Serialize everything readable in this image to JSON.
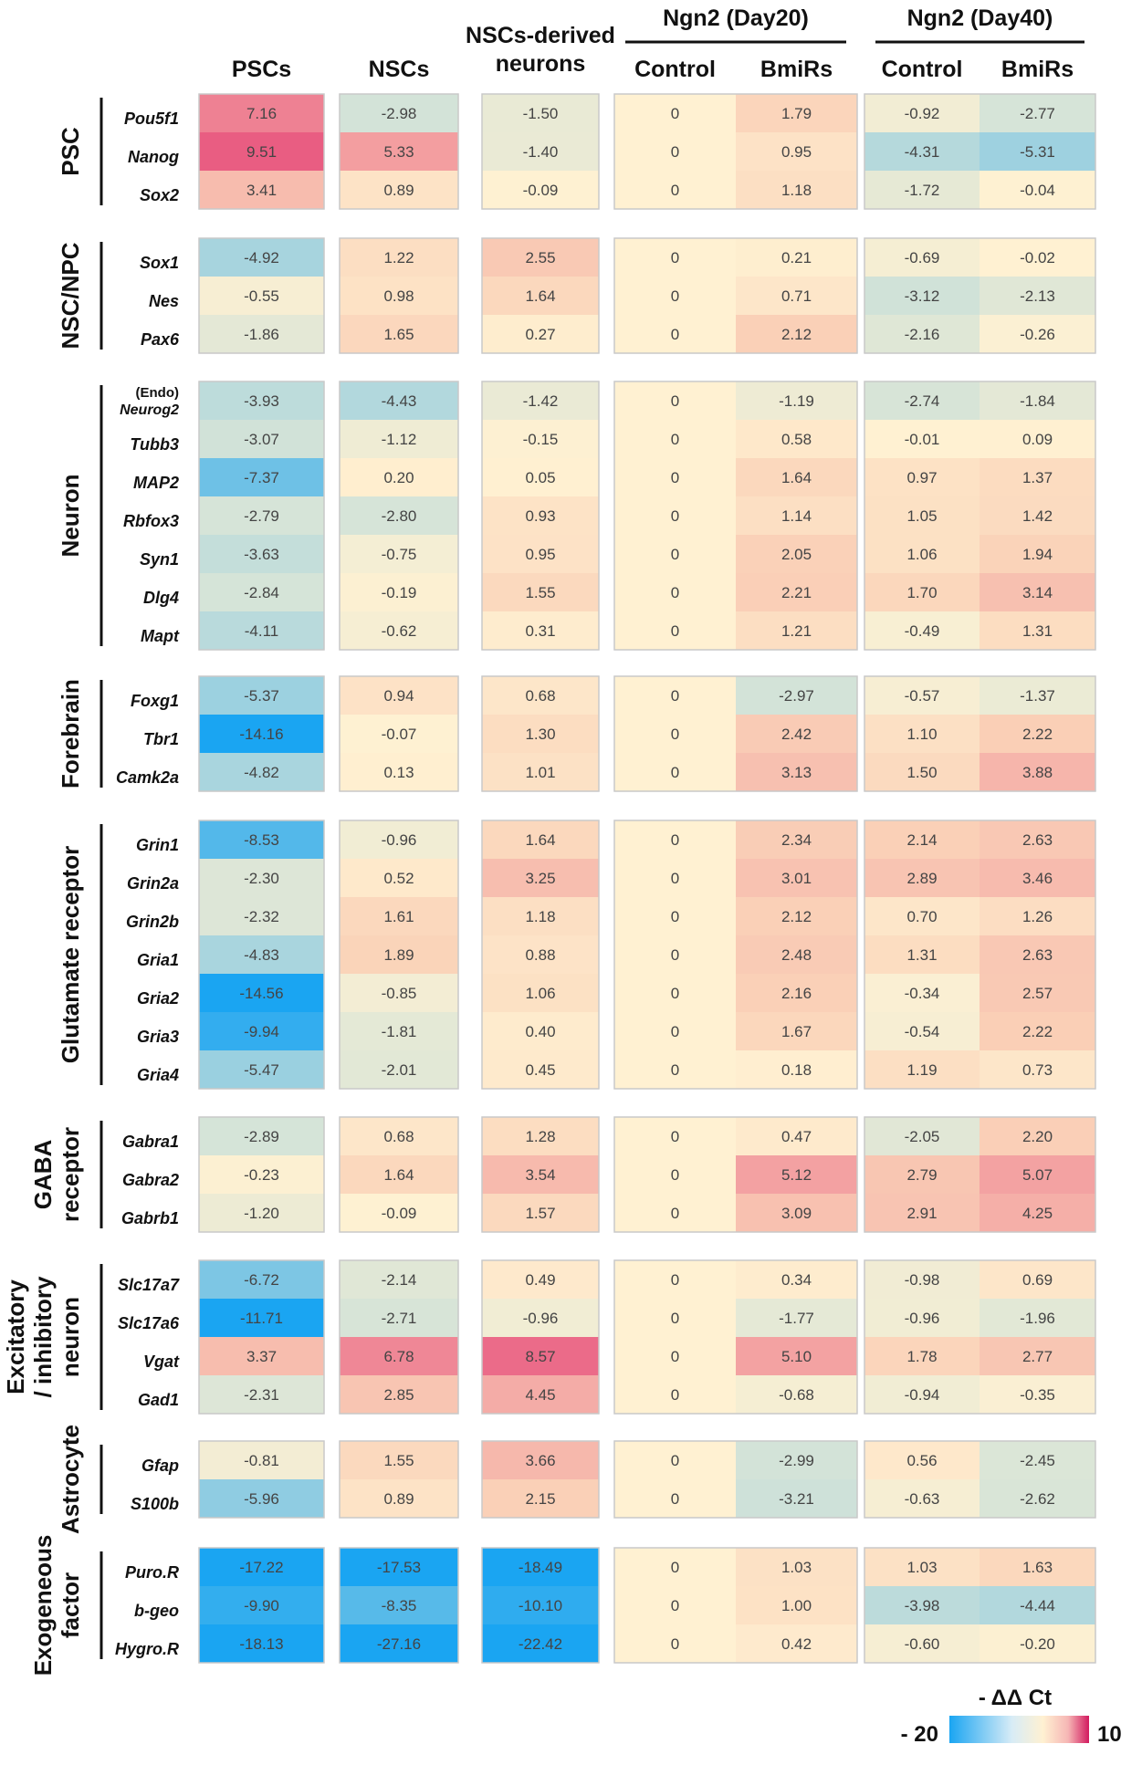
{
  "chart_data": {
    "type": "heatmap",
    "group_headers": [
      {
        "label": "Ngn2 (Day20)"
      },
      {
        "label": "Ngn2 (Day40)"
      }
    ],
    "columns": [
      {
        "label": "PSCs"
      },
      {
        "label": "NSCs"
      },
      {
        "label": "NSCs-derived",
        "label2": "neurons"
      },
      {
        "label": "Control"
      },
      {
        "label": "BmiRs"
      },
      {
        "label": "Control"
      },
      {
        "label": "BmiRs"
      }
    ],
    "groups": [
      {
        "label": [
          "PSC"
        ],
        "rows": [
          {
            "gene": "Pou5f1",
            "values": [
              7.16,
              -2.98,
              -1.5,
              0,
              1.79,
              -0.92,
              -2.77
            ]
          },
          {
            "gene": "Nanog",
            "values": [
              9.51,
              5.33,
              -1.4,
              0,
              0.95,
              -4.31,
              -5.31
            ]
          },
          {
            "gene": "Sox2",
            "values": [
              3.41,
              0.89,
              -0.09,
              0,
              1.18,
              -1.72,
              -0.04
            ]
          }
        ]
      },
      {
        "label": [
          "NSC/NPC"
        ],
        "rows": [
          {
            "gene": "Sox1",
            "values": [
              -4.92,
              1.22,
              2.55,
              0,
              0.21,
              -0.69,
              -0.02
            ]
          },
          {
            "gene": "Nes",
            "values": [
              -0.55,
              0.98,
              1.64,
              0,
              0.71,
              -3.12,
              -2.13
            ]
          },
          {
            "gene": "Pax6",
            "values": [
              -1.86,
              1.65,
              0.27,
              0,
              2.12,
              -2.16,
              -0.26
            ]
          }
        ]
      },
      {
        "label": [
          "Neuron"
        ],
        "rows": [
          {
            "gene_prefix": "(Endo)",
            "gene": "Neurog2",
            "values": [
              -3.93,
              -4.43,
              -1.42,
              0,
              -1.19,
              -2.74,
              -1.84
            ]
          },
          {
            "gene": "Tubb3",
            "values": [
              -3.07,
              -1.12,
              -0.15,
              0,
              0.58,
              -0.01,
              0.09
            ]
          },
          {
            "gene": "MAP2",
            "values": [
              -7.37,
              0.2,
              0.05,
              0,
              1.64,
              0.97,
              1.37
            ]
          },
          {
            "gene": "Rbfox3",
            "values": [
              -2.79,
              -2.8,
              0.93,
              0,
              1.14,
              1.05,
              1.42
            ]
          },
          {
            "gene": "Syn1",
            "values": [
              -3.63,
              -0.75,
              0.95,
              0,
              2.05,
              1.06,
              1.94
            ]
          },
          {
            "gene": "Dlg4",
            "values": [
              -2.84,
              -0.19,
              1.55,
              0,
              2.21,
              1.7,
              3.14
            ]
          },
          {
            "gene": "Mapt",
            "values": [
              -4.11,
              -0.62,
              0.31,
              0,
              1.21,
              -0.49,
              1.31
            ]
          }
        ]
      },
      {
        "label": [
          "Forebrain"
        ],
        "rows": [
          {
            "gene": "Foxg1",
            "values": [
              -5.37,
              0.94,
              0.68,
              0,
              -2.97,
              -0.57,
              -1.37
            ]
          },
          {
            "gene": "Tbr1",
            "values": [
              -14.16,
              -0.07,
              1.3,
              0,
              2.42,
              1.1,
              2.22
            ]
          },
          {
            "gene": "Camk2a",
            "values": [
              -4.82,
              0.13,
              1.01,
              0,
              3.13,
              1.5,
              3.88
            ]
          }
        ]
      },
      {
        "label": [
          "Glutamate receptor"
        ],
        "rows": [
          {
            "gene": "Grin1",
            "values": [
              -8.53,
              -0.96,
              1.64,
              0,
              2.34,
              2.14,
              2.63
            ]
          },
          {
            "gene": "Grin2a",
            "values": [
              -2.3,
              0.52,
              3.25,
              0,
              3.01,
              2.89,
              3.46
            ]
          },
          {
            "gene": "Grin2b",
            "values": [
              -2.32,
              1.61,
              1.18,
              0,
              2.12,
              0.7,
              1.26
            ]
          },
          {
            "gene": "Gria1",
            "values": [
              -4.83,
              1.89,
              0.88,
              0,
              2.48,
              1.31,
              2.63
            ]
          },
          {
            "gene": "Gria2",
            "values": [
              -14.56,
              -0.85,
              1.06,
              0,
              2.16,
              -0.34,
              2.57
            ]
          },
          {
            "gene": "Gria3",
            "values": [
              -9.94,
              -1.81,
              0.4,
              0,
              1.67,
              -0.54,
              2.22
            ]
          },
          {
            "gene": "Gria4",
            "values": [
              -5.47,
              -2.01,
              0.45,
              0,
              0.18,
              1.19,
              0.73
            ]
          }
        ]
      },
      {
        "label": [
          "GABA",
          "receptor"
        ],
        "rows": [
          {
            "gene": "Gabra1",
            "values": [
              -2.89,
              0.68,
              1.28,
              0,
              0.47,
              -2.05,
              2.2
            ]
          },
          {
            "gene": "Gabra2",
            "values": [
              -0.23,
              1.64,
              3.54,
              0,
              5.12,
              2.79,
              5.07
            ]
          },
          {
            "gene": "Gabrb1",
            "values": [
              -1.2,
              -0.09,
              1.57,
              0,
              3.09,
              2.91,
              4.25
            ]
          }
        ]
      },
      {
        "label": [
          "Excitatory",
          "/ inhibitory",
          "neuron"
        ],
        "rows": [
          {
            "gene": "Slc17a7",
            "values": [
              -6.72,
              -2.14,
              0.49,
              0,
              0.34,
              -0.98,
              0.69
            ]
          },
          {
            "gene": "Slc17a6",
            "values": [
              -11.71,
              -2.71,
              -0.96,
              0,
              -1.77,
              -0.96,
              -1.96
            ]
          },
          {
            "gene": "Vgat",
            "values": [
              3.37,
              6.78,
              8.57,
              0,
              5.1,
              1.78,
              2.77
            ]
          },
          {
            "gene": "Gad1",
            "values": [
              -2.31,
              2.85,
              4.45,
              0,
              -0.68,
              -0.94,
              -0.35
            ]
          }
        ]
      },
      {
        "label": [
          "Astrocyte"
        ],
        "rows": [
          {
            "gene": "Gfap",
            "values": [
              -0.81,
              1.55,
              3.66,
              0,
              -2.99,
              0.56,
              -2.45
            ]
          },
          {
            "gene": "S100b",
            "values": [
              -5.96,
              0.89,
              2.15,
              0,
              -3.21,
              -0.63,
              -2.62
            ]
          }
        ]
      },
      {
        "label": [
          "Exogeneous",
          "factor"
        ],
        "rows": [
          {
            "gene": "Puro.R",
            "values": [
              -17.22,
              -17.53,
              -18.49,
              0,
              1.03,
              1.03,
              1.63
            ]
          },
          {
            "gene": "b-geo",
            "values": [
              -9.9,
              -8.35,
              -10.1,
              0,
              1.0,
              -3.98,
              -4.44
            ]
          },
          {
            "gene": "Hygro.R",
            "values": [
              -18.13,
              -27.16,
              -22.42,
              0,
              0.42,
              -0.6,
              -0.2
            ]
          }
        ]
      }
    ],
    "legend": {
      "title": "- ΔΔ Ct",
      "min": -20,
      "max": 10,
      "min_label": "- 20",
      "max_label": "10"
    },
    "colors": {
      "low": "#1aa5f2",
      "neg_mid": "#d3e3d8",
      "zero": "#fff1d2",
      "pos_mid": "#fad2b8",
      "high": "#e8557f"
    }
  }
}
